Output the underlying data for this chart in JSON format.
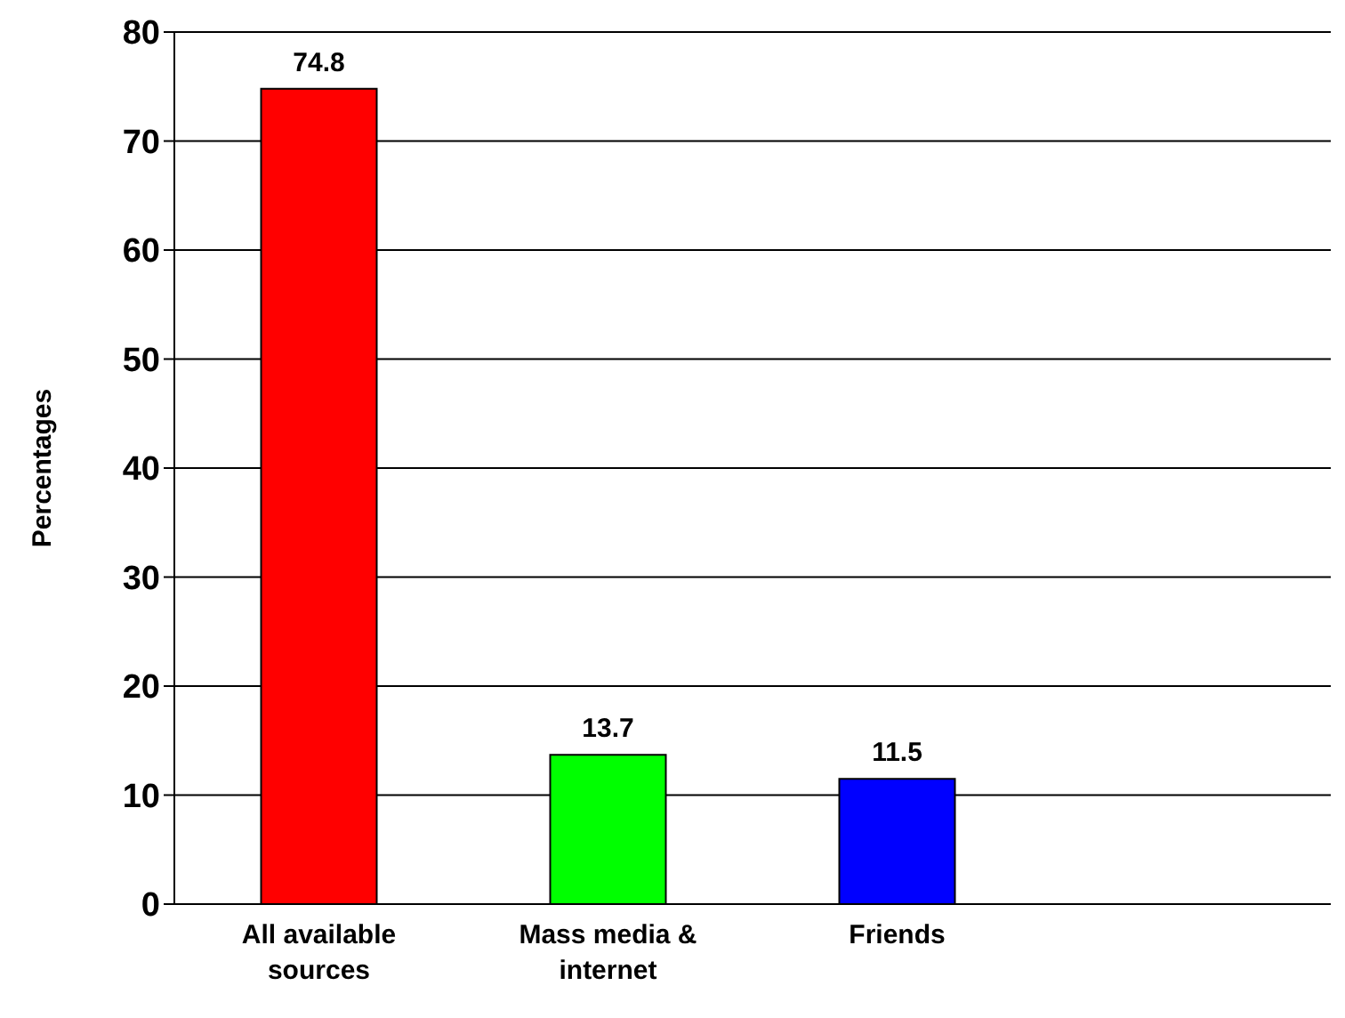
{
  "chart_data": {
    "type": "bar",
    "ylabel": "Percentages",
    "categories": [
      "All available sources",
      "Mass media & internet",
      "Friends",
      null
    ],
    "values": [
      74.8,
      13.7,
      11.5,
      null
    ],
    "colors": [
      "#ff0000",
      "#00ff00",
      "#0000ff",
      "#000000"
    ],
    "ylim": [
      0,
      80
    ],
    "yticks": [
      0,
      10,
      20,
      30,
      40,
      50,
      60,
      70,
      80
    ],
    "grid": "y",
    "data_labels": true
  }
}
